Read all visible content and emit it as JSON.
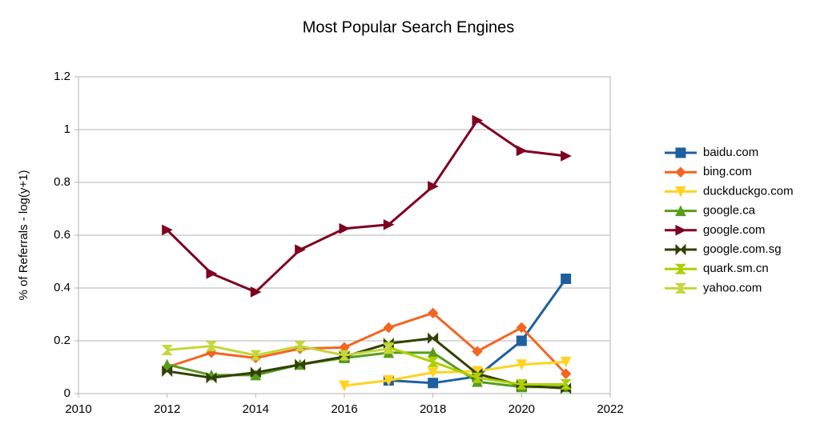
{
  "chart_data": {
    "type": "line",
    "title": "Most Popular Search Engines",
    "y_label": "% of Referrals - log(y+1)",
    "x": [
      2012,
      2013,
      2014,
      2015,
      2016,
      2017,
      2018,
      2019,
      2020,
      2021
    ],
    "xlim": [
      2010,
      2022
    ],
    "xticks": [
      2010,
      2012,
      2014,
      2016,
      2018,
      2020,
      2022
    ],
    "ylim": [
      0,
      1.2
    ],
    "yticks": [
      0,
      0.2,
      0.4,
      0.6,
      0.8,
      1,
      1.2
    ],
    "grid": true,
    "legend": "right",
    "series": [
      {
        "name": "baidu.com",
        "color": "#1f5fa0",
        "marker": "square",
        "values": [
          null,
          null,
          null,
          null,
          null,
          0.05,
          0.04,
          0.065,
          0.2,
          0.435
        ]
      },
      {
        "name": "bing.com",
        "color": "#f26522",
        "marker": "diamond",
        "values": [
          0.1,
          0.155,
          0.135,
          0.17,
          0.175,
          0.25,
          0.305,
          0.16,
          0.25,
          0.075
        ]
      },
      {
        "name": "duckduckgo.com",
        "color": "#ffd320",
        "marker": "triangle-down",
        "values": [
          null,
          null,
          null,
          null,
          0.03,
          0.05,
          0.08,
          0.085,
          0.11,
          0.12
        ]
      },
      {
        "name": "google.ca",
        "color": "#579d1c",
        "marker": "triangle-up",
        "values": [
          0.11,
          0.07,
          0.07,
          0.11,
          0.135,
          0.155,
          0.155,
          0.045,
          0.025,
          0.025
        ]
      },
      {
        "name": "google.com",
        "color": "#7e0021",
        "marker": "triangle-right",
        "values": [
          0.62,
          0.455,
          0.385,
          0.545,
          0.625,
          0.64,
          0.785,
          1.035,
          0.92,
          0.9
        ]
      },
      {
        "name": "google.com.sg",
        "color": "#314004",
        "marker": "bowtie",
        "values": [
          0.085,
          0.06,
          0.08,
          0.11,
          0.14,
          0.19,
          0.21,
          0.075,
          0.03,
          0.02
        ]
      },
      {
        "name": "quark.sm.cn",
        "color": "#aecf00",
        "marker": "hourglass",
        "values": [
          null,
          null,
          null,
          null,
          null,
          0.175,
          0.12,
          0.06,
          0.035,
          0.035
        ]
      },
      {
        "name": "yahoo.com",
        "color": "#c5d63a",
        "marker": "hourglass",
        "values": [
          0.165,
          0.18,
          0.145,
          0.18,
          0.145,
          0.17,
          null,
          null,
          null,
          null
        ]
      }
    ]
  }
}
